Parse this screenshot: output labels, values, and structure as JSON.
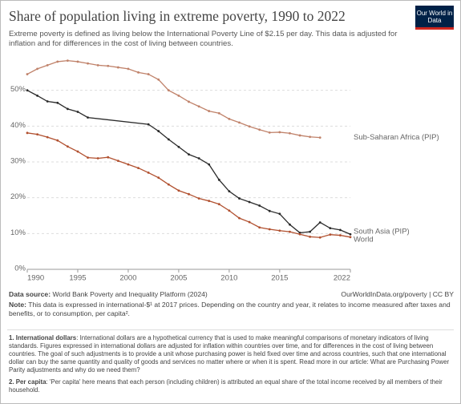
{
  "chart_data": {
    "type": "line",
    "title": "Share of population living in extreme poverty, 1990 to 2022",
    "subtitle": "Extreme poverty is defined as living below the International Poverty Line of $2.15 per day. This data is adjusted for inflation and for differences in the cost of living between countries.",
    "logo": "Our World in Data",
    "xlim": [
      1990,
      2022
    ],
    "xticks": [
      1990,
      1995,
      2000,
      2005,
      2010,
      2015,
      2022
    ],
    "ylim": [
      0,
      60
    ],
    "yticks": [
      {
        "value": 0,
        "label": "0%"
      },
      {
        "value": 10,
        "label": "10%"
      },
      {
        "value": 20,
        "label": "20%"
      },
      {
        "value": 30,
        "label": "30%"
      },
      {
        "value": 40,
        "label": "40%"
      },
      {
        "value": 50,
        "label": "50%"
      }
    ],
    "grid": true,
    "series": [
      {
        "name": "Sub-Saharan Africa (PIP)",
        "color": "#c0826a",
        "x": [
          1990,
          1991,
          1992,
          1993,
          1994,
          1995,
          1996,
          1997,
          1998,
          1999,
          2000,
          2001,
          2002,
          2003,
          2004,
          2005,
          2006,
          2007,
          2008,
          2009,
          2010,
          2011,
          2012,
          2013,
          2014,
          2015,
          2016,
          2017,
          2018,
          2019
        ],
        "values": [
          54.5,
          56.0,
          57.0,
          58.0,
          58.3,
          58.0,
          57.5,
          57.0,
          56.8,
          56.4,
          56.0,
          55.0,
          54.5,
          53.0,
          50.0,
          48.5,
          46.8,
          45.5,
          44.2,
          43.6,
          42.0,
          41.0,
          39.9,
          39.0,
          38.2,
          38.3,
          38.0,
          37.4,
          37.0,
          36.8
        ]
      },
      {
        "name": "South Asia (PIP)",
        "color": "#2a2a2a",
        "x": [
          1990,
          1991,
          1992,
          1993,
          1994,
          1995,
          1996,
          2002,
          2003,
          2004,
          2005,
          2006,
          2007,
          2008,
          2009,
          2010,
          2011,
          2012,
          2013,
          2014,
          2015,
          2016,
          2017,
          2018,
          2019,
          2020,
          2021,
          2022
        ],
        "values": [
          50.0,
          48.5,
          46.9,
          46.5,
          44.8,
          44.0,
          42.4,
          40.5,
          38.6,
          36.3,
          34.2,
          32.1,
          31.0,
          29.3,
          25.0,
          21.8,
          19.8,
          18.8,
          17.8,
          16.3,
          15.5,
          12.5,
          10.2,
          10.5,
          13.1,
          11.5,
          11.0,
          9.8
        ]
      },
      {
        "name": "World",
        "color": "#b1502f",
        "x": [
          1990,
          1991,
          1992,
          1993,
          1994,
          1995,
          1996,
          1997,
          1998,
          1999,
          2000,
          2001,
          2002,
          2003,
          2004,
          2005,
          2006,
          2007,
          2008,
          2009,
          2010,
          2011,
          2012,
          2013,
          2014,
          2015,
          2016,
          2017,
          2018,
          2019,
          2020,
          2021,
          2022
        ],
        "values": [
          38.1,
          37.7,
          36.9,
          36.0,
          34.3,
          32.9,
          31.2,
          31.0,
          31.3,
          30.3,
          29.3,
          28.3,
          27.0,
          25.6,
          23.7,
          22.0,
          21.0,
          19.8,
          19.1,
          18.2,
          16.4,
          14.3,
          13.2,
          11.7,
          11.2,
          10.8,
          10.5,
          9.8,
          9.1,
          8.9,
          9.7,
          9.5,
          9.0
        ]
      }
    ],
    "source_label": "Data source:",
    "source": "World Bank Poverty and Inequality Platform (2024)",
    "url": "OurWorldInData.org/poverty | CC BY",
    "note_label": "Note:",
    "note": "This data is expressed in international-$¹ at 2017 prices. Depending on the country and year, it relates to income measured after taxes and benefits, or to consumption, per capita².",
    "footnotes": [
      {
        "term": "1. International dollars",
        "text": ": International dollars are a hypothetical currency that is used to make meaningful comparisons of monetary indicators of living standards. Figures expressed in international dollars are adjusted for inflation within countries over time, and for differences in the cost of living between countries. The goal of such adjustments is to provide a unit whose purchasing power is held fixed over time and across countries, such that one international dollar can buy the same quantity and quality of goods and services no matter where or when it is spent. Read more in our article: What are Purchasing Power Parity adjustments and why do we need them?"
      },
      {
        "term": "2. Per capita",
        "text": ": 'Per capita' here means that each person (including children) is attributed an equal share of the total income received by all members of their household."
      }
    ]
  }
}
